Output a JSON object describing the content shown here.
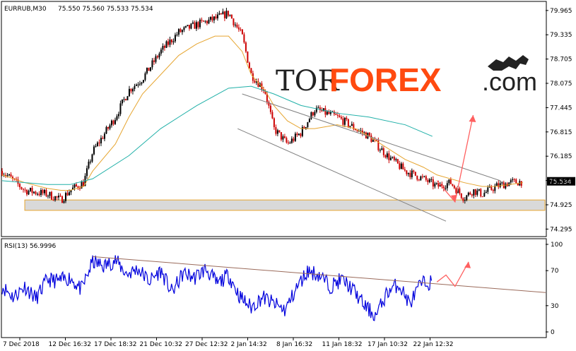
{
  "header": {
    "symbol": "EURRUB,M30",
    "ohlc": "75.550 75.560 75.533 75.534"
  },
  "logo": {
    "part1": "TOR",
    "part2": "FOREX",
    "part3": ".com",
    "icon": "bull-bear-icon"
  },
  "colors": {
    "bull_candle": "#000000",
    "bear_candle": "#cc0000",
    "ma_fast": "#e6a530",
    "ma_slow": "#20b0a8",
    "channel": "#808080",
    "support_zone": "#d9d9d9",
    "support_border": "#e6a530",
    "forecast_arrow": "#ff6060",
    "rsi_line": "#0000dd",
    "rsi_trend": "#9a6a5a"
  },
  "chart_data": [
    {
      "type": "candlestick",
      "title": "EURRUB,M30",
      "x_ticks": [
        "7 Dec 2018",
        "12 Dec 16:32",
        "17 Dec 18:32",
        "21 Dec 10:32",
        "27 Dec 12:32",
        "2 Jan 14:32",
        "8 Jan 16:32",
        "11 Jan 18:32",
        "17 Jan 10:32",
        "22 Jan 12:32"
      ],
      "y_ticks": [
        "79.965",
        "79.335",
        "78.705",
        "78.075",
        "77.445",
        "76.815",
        "76.185",
        "75.555",
        "74.925",
        "74.295"
      ],
      "ylim": [
        74.1,
        80.2
      ],
      "current_price": "75.534",
      "price_path_x": [
        0,
        10,
        20,
        26,
        30,
        36,
        40,
        50,
        56,
        62,
        70,
        78,
        86,
        94,
        100,
        106,
        110,
        116,
        120,
        126,
        132,
        138,
        148,
        156,
        162,
        170,
        178,
        186,
        192,
        198,
        204,
        208,
        212,
        218,
        224,
        230
      ],
      "price_path_y": [
        75.8,
        75.3,
        75.2,
        75.05,
        75.3,
        75.5,
        76.3,
        77.2,
        77.9,
        78.2,
        78.9,
        79.4,
        79.6,
        79.75,
        79.9,
        79.3,
        78.3,
        77.9,
        76.9,
        76.5,
        76.8,
        77.4,
        77.2,
        76.9,
        76.7,
        76.2,
        75.8,
        75.6,
        75.4,
        75.5,
        75.1,
        75.3,
        75.2,
        75.4,
        75.5,
        75.53
      ],
      "ma_fast_y": [
        75.7,
        75.5,
        75.35,
        75.3,
        75.3,
        75.4,
        75.8,
        76.5,
        77.2,
        77.8,
        78.3,
        78.8,
        79.1,
        79.3,
        79.3,
        78.9,
        78.3,
        77.9,
        77.5,
        77.1,
        76.9,
        76.9,
        77.0,
        76.9,
        76.7,
        76.4,
        76.1,
        75.9,
        75.7,
        75.6,
        75.5,
        75.45,
        75.4,
        75.4,
        75.45,
        75.5
      ],
      "ma_slow_x": [
        0,
        20,
        30,
        40,
        56,
        70,
        86,
        100,
        110,
        120,
        132,
        148,
        162,
        178,
        190
      ],
      "ma_slow_y": [
        75.55,
        75.45,
        75.45,
        75.6,
        76.2,
        76.9,
        77.5,
        77.95,
        78.0,
        77.8,
        77.5,
        77.3,
        77.2,
        77.0,
        76.7
      ],
      "support_zone": [
        74.78,
        75.05
      ],
      "channel_upper": {
        "x": [
          106,
          220
        ],
        "y": [
          77.8,
          75.55
        ]
      },
      "channel_lower": {
        "x": [
          104,
          196
        ],
        "y": [
          76.9,
          74.5
        ]
      },
      "forecast": {
        "x": [
          192,
          200,
          208
        ],
        "y": [
          75.55,
          75.0,
          77.25
        ]
      }
    },
    {
      "type": "line",
      "title": "RSI(13) 56.9996",
      "y_ticks": [
        "100",
        "70",
        "30",
        "0"
      ],
      "ylim": [
        0,
        100
      ],
      "rsi_x": [
        0,
        5,
        10,
        15,
        20,
        25,
        30,
        35,
        40,
        45,
        50,
        55,
        60,
        65,
        70,
        75,
        80,
        85,
        90,
        95,
        100,
        105,
        110,
        115,
        120,
        125,
        130,
        135,
        140,
        145,
        150,
        155,
        160,
        165,
        170,
        175,
        180,
        185,
        190
      ],
      "rsi_values": [
        52,
        40,
        52,
        38,
        60,
        58,
        62,
        48,
        80,
        75,
        82,
        66,
        72,
        58,
        70,
        45,
        67,
        62,
        72,
        55,
        65,
        40,
        28,
        40,
        32,
        25,
        50,
        70,
        65,
        52,
        60,
        48,
        30,
        18,
        45,
        55,
        32,
        55,
        57
      ],
      "trendline": {
        "x": [
          40,
          240
        ],
        "y": [
          86,
          45
        ]
      },
      "forecast": {
        "x": [
          192,
          196,
          200,
          206
        ],
        "y": [
          57,
          65,
          52,
          80
        ]
      }
    }
  ]
}
